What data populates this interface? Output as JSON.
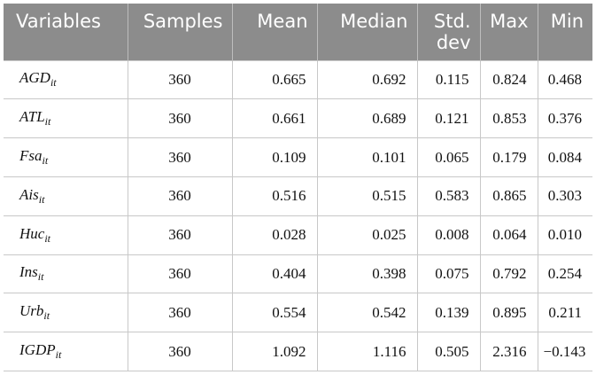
{
  "table": {
    "headers": [
      "Variables",
      "Samples",
      "Mean",
      "Median",
      "Std. dev",
      "Max",
      "Min"
    ],
    "rows": [
      {
        "var": "AGD",
        "sub": "it",
        "cells": [
          "360",
          "0.665",
          "0.692",
          "0.115",
          "0.824",
          "0.468"
        ]
      },
      {
        "var": "ATL",
        "sub": "it",
        "cells": [
          "360",
          "0.661",
          "0.689",
          "0.121",
          "0.853",
          "0.376"
        ]
      },
      {
        "var": "Fsa",
        "sub": "it",
        "cells": [
          "360",
          "0.109",
          "0.101",
          "0.065",
          "0.179",
          "0.084"
        ]
      },
      {
        "var": "Ais",
        "sub": "it",
        "cells": [
          "360",
          "0.516",
          "0.515",
          "0.583",
          "0.865",
          "0.303"
        ]
      },
      {
        "var": "Huc",
        "sub": "it",
        "cells": [
          "360",
          "0.028",
          "0.025",
          "0.008",
          "0.064",
          "0.010"
        ]
      },
      {
        "var": "Ins",
        "sub": "it",
        "cells": [
          "360",
          "0.404",
          "0.398",
          "0.075",
          "0.792",
          "0.254"
        ]
      },
      {
        "var": "Urb",
        "sub": "it",
        "cells": [
          "360",
          "0.554",
          "0.542",
          "0.139",
          "0.895",
          "0.211"
        ]
      },
      {
        "var": "IGDP",
        "sub": "it",
        "cells": [
          "360",
          "1.092",
          "1.116",
          "0.505",
          "2.316",
          "−0.143"
        ]
      }
    ]
  }
}
